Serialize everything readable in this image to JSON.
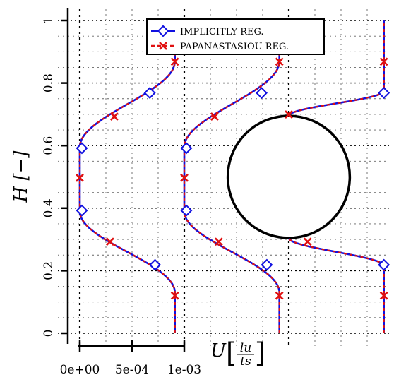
{
  "chart_data": {
    "type": "line",
    "ylabel": "H [−]",
    "xlabel": "U [lu/ts]",
    "xlabel_parts": {
      "symbol": "U",
      "num": "lu",
      "den": "ts"
    },
    "ylim": [
      0,
      1
    ],
    "y_ticks": [
      "0",
      "0.2",
      "0.4",
      "0.6",
      "0.8",
      "1"
    ],
    "x_ticks": [
      "0e+00",
      "5e-04",
      "1e-03"
    ],
    "grid": true,
    "legend_position": "top-center",
    "cylinder": {
      "center_y": 0.5,
      "radius": 0.195
    },
    "colors": {
      "implicit": "#1010e0",
      "papanastasiou": "#e01010",
      "axis": "#000000"
    },
    "series": [
      {
        "name": "IMPLICITLY REG.",
        "style": "solid-diamond",
        "profiles": [
          {
            "location": "profile-1",
            "markers": [
              {
                "H": 0.2186,
                "U": 0.00072
              },
              {
                "H": 0.3926,
                "U": 2e-05
              },
              {
                "H": 0.5917,
                "U": 2e-05
              },
              {
                "H": 0.7684,
                "U": 0.00067
              }
            ]
          },
          {
            "location": "profile-2",
            "markers": [
              {
                "H": 0.2186,
                "U": 0.00079
              },
              {
                "H": 0.3926,
                "U": 2e-05
              },
              {
                "H": 0.5917,
                "U": 2e-05
              },
              {
                "H": 0.7684,
                "U": 0.00074
              }
            ]
          },
          {
            "location": "profile-3",
            "markers": [
              {
                "H": 0.2186,
                "U": 0.00091
              },
              {
                "H": 0.7684,
                "U": 0.00091
              }
            ]
          }
        ]
      },
      {
        "name": "PAPANASTASIOU REG.",
        "style": "dashed-cross",
        "profiles": [
          {
            "location": "profile-1",
            "markers": [
              {
                "H": 0.1203,
                "U": 0.00091
              },
              {
                "H": 0.2929,
                "U": 0.00029
              },
              {
                "H": 0.497,
                "U": 0.0
              },
              {
                "H": 0.6928,
                "U": 0.00033
              },
              {
                "H": 0.8682,
                "U": 0.00091
              }
            ]
          },
          {
            "location": "profile-2",
            "markers": [
              {
                "H": 0.1203,
                "U": 0.00091
              },
              {
                "H": 0.2929,
                "U": 0.00033
              },
              {
                "H": 0.497,
                "U": 0.0
              },
              {
                "H": 0.6928,
                "U": 0.00029
              },
              {
                "H": 0.8682,
                "U": 0.00091
              }
            ]
          },
          {
            "location": "profile-3",
            "markers": [
              {
                "H": 0.1203,
                "U": 0.00091
              },
              {
                "H": 0.2929,
                "U": 0.00018
              },
              {
                "H": 0.6997,
                "U": 0.0
              },
              {
                "H": 0.8682,
                "U": 0.00091
              }
            ]
          }
        ]
      }
    ]
  }
}
